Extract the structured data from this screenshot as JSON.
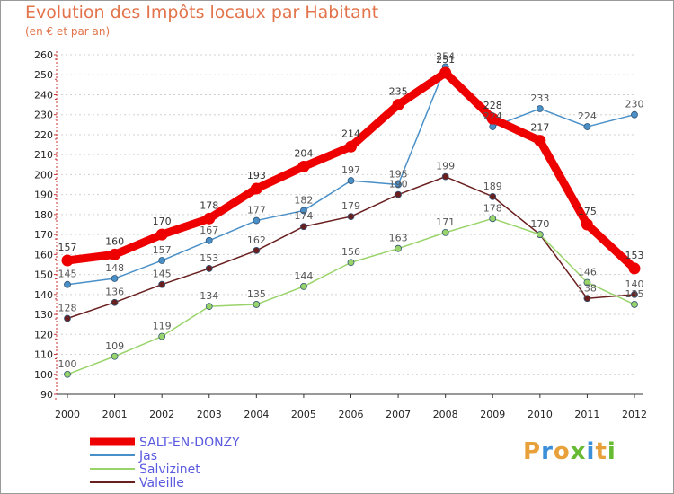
{
  "title": "Evolution des Impôts locaux par Habitant",
  "subtitle": "(en € et par an)",
  "logo": {
    "text": "Proxiti",
    "colors": [
      "#e8a13a",
      "#3a8fd8",
      "#e8a13a",
      "#66bb33",
      "#3a8fd8",
      "#e8a13a",
      "#66bb33"
    ]
  },
  "chart_data": {
    "type": "line",
    "title": "Evolution des Impôts locaux par Habitant",
    "subtitle": "(en € et par an)",
    "xlabel": "",
    "ylabel": "",
    "categories": [
      "2000",
      "2001",
      "2002",
      "2003",
      "2004",
      "2005",
      "2006",
      "2007",
      "2008",
      "2009",
      "2010",
      "2011",
      "2012"
    ],
    "ylim": [
      90,
      260
    ],
    "yticks": [
      90,
      100,
      110,
      120,
      130,
      140,
      150,
      160,
      170,
      180,
      190,
      200,
      210,
      220,
      230,
      240,
      250,
      260
    ],
    "grid": "horizontal-dashed",
    "legend_position": "bottom-left",
    "series": [
      {
        "name": "SALT-EN-DONZY",
        "color": "#ee0000",
        "values": [
          157,
          160,
          170,
          178,
          193,
          204,
          214,
          235,
          251,
          228,
          217,
          175,
          153
        ]
      },
      {
        "name": "Jas",
        "color": "#4a90c8",
        "values": [
          145,
          148,
          157,
          167,
          177,
          182,
          197,
          195,
          254,
          224,
          233,
          224,
          230
        ]
      },
      {
        "name": "Salvizinet",
        "color": "#99d46a",
        "values": [
          100,
          109,
          119,
          134,
          135,
          144,
          156,
          163,
          171,
          178,
          170,
          146,
          135
        ]
      },
      {
        "name": "Valeille",
        "color": "#6a1f1f",
        "values": [
          128,
          136,
          145,
          153,
          162,
          174,
          179,
          190,
          199,
          189,
          170,
          138,
          140
        ]
      }
    ]
  }
}
